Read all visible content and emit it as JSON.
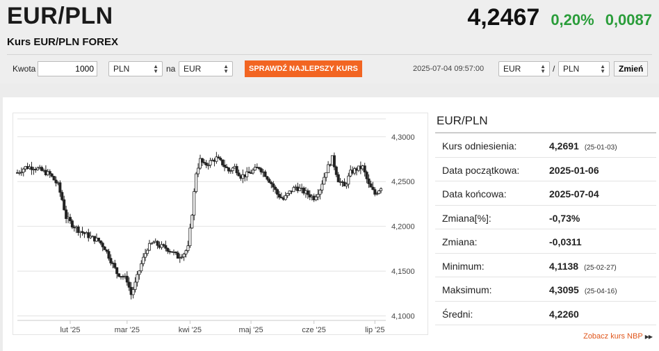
{
  "header": {
    "pair": "EUR/PLN",
    "subtitle": "Kurs EUR/PLN FOREX",
    "price": "4,2467",
    "change_pct": "0,20%",
    "change_abs": "0,0087",
    "change_color": "#2a9d3a"
  },
  "toolbar": {
    "amount_label": "Kwota",
    "amount_value": "1000",
    "from_currency": "PLN",
    "na_label": "na",
    "to_currency": "EUR",
    "best_rate_button": "SPRAWDŹ NAJLEPSZY KURS",
    "best_rate_color": "#f26522",
    "timestamp": "2025-07-04 09:57:00",
    "pair_base": "EUR",
    "slash": "/",
    "pair_quote": "PLN",
    "change_button": "Zmień"
  },
  "stats": {
    "title": "EUR/PLN",
    "rows": [
      {
        "label": "Kurs odniesienia:",
        "value": "4,2691",
        "date": "(25-01-03)"
      },
      {
        "label": "Data początkowa:",
        "value": "2025-01-06",
        "date": ""
      },
      {
        "label": "Data końcowa:",
        "value": "2025-07-04",
        "date": ""
      },
      {
        "label": "Zmiana[%]:",
        "value": "-0,73%",
        "date": ""
      },
      {
        "label": "Zmiana:",
        "value": "-0,0311",
        "date": ""
      },
      {
        "label": "Minimum:",
        "value": "4,1138",
        "date": "(25-02-27)"
      },
      {
        "label": "Maksimum:",
        "value": "4,3095",
        "date": "(25-04-16)"
      },
      {
        "label": "Średni:",
        "value": "4,2260",
        "date": ""
      }
    ],
    "nbp_link": "Zobacz kurs NBP"
  },
  "chart_data": {
    "type": "candlestick",
    "y_ticks": [
      "4,3000",
      "4,2500",
      "4,2000",
      "4,1500",
      "4,1000"
    ],
    "y_tick_values": [
      4.3,
      4.25,
      4.2,
      4.15,
      4.1
    ],
    "ylim": [
      4.095,
      4.32
    ],
    "x_ticks": [
      {
        "label": "lut '25",
        "day": 26
      },
      {
        "label": "mar '25",
        "day": 54
      },
      {
        "label": "kwi '25",
        "day": 85
      },
      {
        "label": "maj '25",
        "day": 115
      },
      {
        "label": "cze '25",
        "day": 146
      },
      {
        "label": "lip '25",
        "day": 176
      }
    ],
    "xlim": [
      0,
      180
    ],
    "grid": true,
    "up_color": "#ffffff",
    "down_color": "#222222",
    "close_path": [
      [
        0,
        4.26
      ],
      [
        4,
        4.266
      ],
      [
        8,
        4.266
      ],
      [
        12,
        4.262
      ],
      [
        16,
        4.258
      ],
      [
        20,
        4.246
      ],
      [
        22,
        4.23
      ],
      [
        24,
        4.21
      ],
      [
        27,
        4.202
      ],
      [
        30,
        4.196
      ],
      [
        33,
        4.192
      ],
      [
        36,
        4.188
      ],
      [
        40,
        4.184
      ],
      [
        43,
        4.176
      ],
      [
        46,
        4.162
      ],
      [
        49,
        4.148
      ],
      [
        52,
        4.144
      ],
      [
        54,
        4.14
      ],
      [
        56,
        4.124
      ],
      [
        58,
        4.136
      ],
      [
        61,
        4.158
      ],
      [
        64,
        4.176
      ],
      [
        67,
        4.182
      ],
      [
        70,
        4.178
      ],
      [
        73,
        4.176
      ],
      [
        76,
        4.172
      ],
      [
        79,
        4.166
      ],
      [
        82,
        4.17
      ],
      [
        84,
        4.176
      ],
      [
        86,
        4.215
      ],
      [
        88,
        4.26
      ],
      [
        90,
        4.274
      ],
      [
        92,
        4.268
      ],
      [
        95,
        4.272
      ],
      [
        98,
        4.276
      ],
      [
        101,
        4.27
      ],
      [
        104,
        4.262
      ],
      [
        107,
        4.266
      ],
      [
        110,
        4.256
      ],
      [
        113,
        4.258
      ],
      [
        116,
        4.262
      ],
      [
        119,
        4.266
      ],
      [
        122,
        4.258
      ],
      [
        125,
        4.248
      ],
      [
        128,
        4.236
      ],
      [
        131,
        4.23
      ],
      [
        134,
        4.238
      ],
      [
        137,
        4.244
      ],
      [
        140,
        4.24
      ],
      [
        143,
        4.236
      ],
      [
        146,
        4.232
      ],
      [
        149,
        4.242
      ],
      [
        152,
        4.262
      ],
      [
        155,
        4.276
      ],
      [
        158,
        4.252
      ],
      [
        161,
        4.244
      ],
      [
        164,
        4.26
      ],
      [
        167,
        4.264
      ],
      [
        170,
        4.266
      ],
      [
        173,
        4.246
      ],
      [
        176,
        4.236
      ],
      [
        179,
        4.244
      ]
    ]
  }
}
